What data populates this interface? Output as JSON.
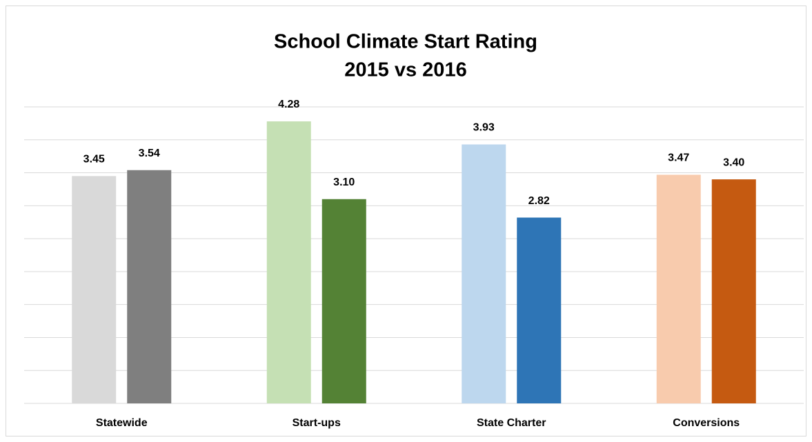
{
  "chart_data": {
    "type": "bar",
    "title": "School Climate Start Rating",
    "subtitle": "2015 vs 2016",
    "categories": [
      "Statewide",
      "Start-ups",
      "State Charter",
      "Conversions"
    ],
    "series": [
      {
        "colors": [
          "#d9d9d9",
          "#c5e0b4",
          "#bdd7ee",
          "#f8cbad"
        ],
        "values": [
          3.45,
          4.28,
          3.93,
          3.47
        ],
        "value_labels": [
          "3.45",
          "4.28",
          "3.93",
          "3.47"
        ]
      },
      {
        "colors": [
          "#7f7f7f",
          "#548235",
          "#2e75b6",
          "#c55a11"
        ],
        "values": [
          3.54,
          3.1,
          2.82,
          3.4
        ],
        "value_labels": [
          "3.54",
          "3.10",
          "2.82",
          "3.40"
        ]
      }
    ],
    "ylim": [
      0,
      4.5
    ],
    "yticks": [
      0,
      0.5,
      1,
      1.5,
      2,
      2.5,
      3,
      3.5,
      4,
      4.5
    ],
    "grid": true
  }
}
